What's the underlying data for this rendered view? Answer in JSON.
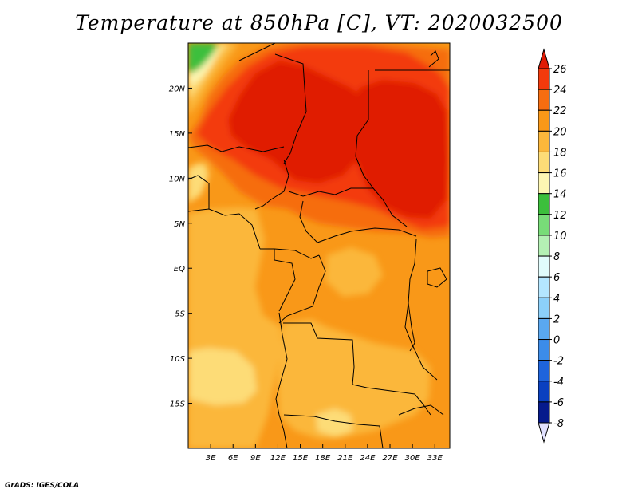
{
  "title": "Temperature at 850hPa [C], VT: 2020032500",
  "credit": "GrADS: IGES/COLA",
  "map": {
    "lon_range": [
      0,
      35
    ],
    "lat_range": [
      -20,
      25
    ],
    "x_ticks": [
      3,
      6,
      9,
      12,
      15,
      18,
      21,
      24,
      27,
      30,
      33
    ],
    "x_tick_labels": [
      "3E",
      "6E",
      "9E",
      "12E",
      "15E",
      "18E",
      "21E",
      "24E",
      "27E",
      "30E",
      "33E"
    ],
    "y_ticks": [
      20,
      15,
      10,
      5,
      0,
      -5,
      -10,
      -15
    ],
    "y_tick_labels": [
      "20N",
      "15N",
      "10N",
      "5N",
      "EQ",
      "5S",
      "10S",
      "15S"
    ]
  },
  "colorbar": {
    "levels": [
      "26",
      "24",
      "22",
      "20",
      "18",
      "16",
      "14",
      "12",
      "10",
      "8",
      "6",
      "4",
      "2",
      "0",
      "-2",
      "-4",
      "-6",
      "-8"
    ],
    "colors": [
      "#e01a04",
      "#f33a0c",
      "#f66d10",
      "#f99818",
      "#fbb73b",
      "#fddc77",
      "#fdf6b3",
      "#3cbf3c",
      "#78dc78",
      "#b4f0b4",
      "#e1fbfb",
      "#b4e6ff",
      "#8cd0fa",
      "#5aa8f0",
      "#3c8ce8",
      "#1e64dc",
      "#0a40c0",
      "#061a8c",
      "#000050"
    ],
    "over_color": "#e01a04",
    "under_color": "#e1e1ff"
  }
}
